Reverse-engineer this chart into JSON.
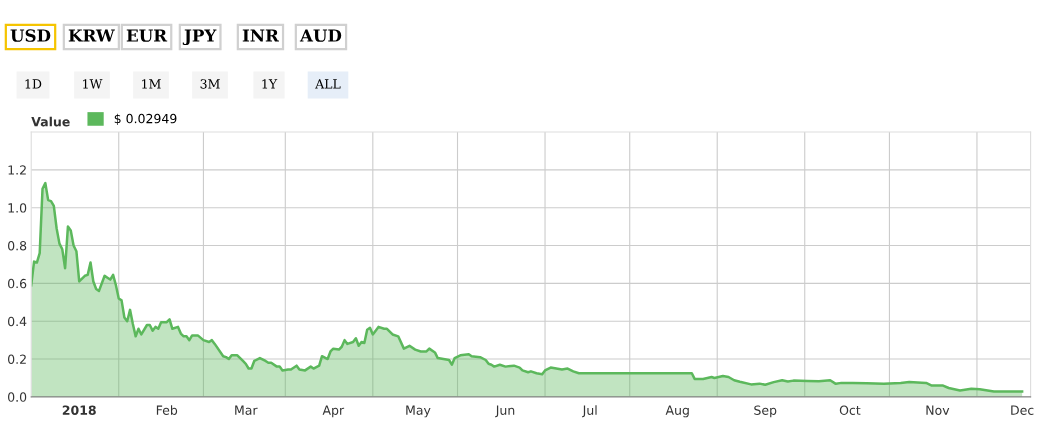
{
  "chart_data": {
    "type": "area",
    "legend_title": "Value",
    "legend": "top left",
    "grid": true,
    "annotations": [
      "USD",
      "KRW",
      "EUR",
      "JPY",
      "INR",
      "AUD",
      "1D",
      "1W",
      "1M",
      "3M",
      "1Y",
      "ALL"
    ],
    "xlim": [
      "2017-12-15",
      "2018-12-04"
    ],
    "xticks": [
      {
        "value": "2018-01-01",
        "label": "2018"
      },
      {
        "value": "2018-01-15",
        "label": null
      },
      {
        "value": "2018-02-01",
        "label": "Feb"
      },
      {
        "value": "2018-02-14",
        "label": null
      },
      {
        "value": "2018-03-01",
        "label": "Mar"
      },
      {
        "value": "2018-03-15",
        "label": null
      },
      {
        "value": "2018-04-01",
        "label": "Apr"
      },
      {
        "value": "2018-04-15",
        "label": null
      },
      {
        "value": "2018-05-01",
        "label": "May"
      },
      {
        "value": "2018-05-15",
        "label": null
      },
      {
        "value": "2018-06-01",
        "label": "Jun"
      },
      {
        "value": "2018-06-15",
        "label": null
      },
      {
        "value": "2018-07-01",
        "label": "Jul"
      },
      {
        "value": "2018-07-15",
        "label": null
      },
      {
        "value": "2018-08-01",
        "label": "Aug"
      },
      {
        "value": "2018-08-15",
        "label": null
      },
      {
        "value": "2018-09-01",
        "label": "Sep"
      },
      {
        "value": "2018-09-15",
        "label": null
      },
      {
        "value": "2018-10-01",
        "label": "Oct"
      },
      {
        "value": "2018-10-15",
        "label": null
      },
      {
        "value": "2018-11-01",
        "label": "Nov"
      },
      {
        "value": "2018-11-15",
        "label": null
      },
      {
        "value": "2018-12-01",
        "label": "Dec"
      }
    ],
    "ylim": [
      0,
      1.4
    ],
    "yticks": [
      {
        "value": 0,
        "label": "0.0"
      },
      {
        "value": 0.2,
        "label": "0.2"
      },
      {
        "value": 0.4,
        "label": "0.4"
      },
      {
        "value": 0.6,
        "label": "0.6"
      },
      {
        "value": 0.8,
        "label": "0.8"
      },
      {
        "value": 1.0,
        "label": "1.0"
      },
      {
        "value": 1.2,
        "label": "1.2"
      }
    ],
    "x": [
      "2017-12-15",
      "2017-12-16",
      "2017-12-17",
      "2017-12-18",
      "2017-12-19",
      "2017-12-20",
      "2017-12-21",
      "2017-12-22",
      "2017-12-23",
      "2017-12-24",
      "2017-12-25",
      "2017-12-26",
      "2017-12-27",
      "2017-12-28",
      "2017-12-29",
      "2017-12-30",
      "2017-12-31",
      "2018-01-01",
      "2018-01-03",
      "2018-01-04",
      "2018-01-05",
      "2018-01-06",
      "2018-01-07",
      "2018-01-08",
      "2018-01-10",
      "2018-01-11",
      "2018-01-12",
      "2018-01-13",
      "2018-01-14",
      "2018-01-15",
      "2018-01-16",
      "2018-01-17",
      "2018-01-18",
      "2018-01-19",
      "2018-01-20",
      "2018-01-21",
      "2018-01-22",
      "2018-01-23",
      "2018-01-25",
      "2018-01-26",
      "2018-01-27",
      "2018-01-28",
      "2018-01-29",
      "2018-01-30",
      "2018-02-01",
      "2018-02-02",
      "2018-02-03",
      "2018-02-05",
      "2018-02-06",
      "2018-02-07",
      "2018-02-08",
      "2018-02-09",
      "2018-02-10",
      "2018-02-12",
      "2018-02-14",
      "2018-02-16",
      "2018-02-17",
      "2018-02-18",
      "2018-02-21",
      "2018-02-22",
      "2018-02-23",
      "2018-02-24",
      "2018-02-26",
      "2018-02-28",
      "2018-03-01",
      "2018-03-02",
      "2018-03-03",
      "2018-03-04",
      "2018-03-06",
      "2018-03-08",
      "2018-03-09",
      "2018-03-10",
      "2018-03-12",
      "2018-03-13",
      "2018-03-14",
      "2018-03-16",
      "2018-03-17",
      "2018-03-19",
      "2018-03-20",
      "2018-03-22",
      "2018-03-24",
      "2018-03-25",
      "2018-03-27",
      "2018-03-28",
      "2018-03-30",
      "2018-03-31",
      "2018-04-01",
      "2018-04-03",
      "2018-04-04",
      "2018-04-05",
      "2018-04-06",
      "2018-04-08",
      "2018-04-09",
      "2018-04-10",
      "2018-04-11",
      "2018-04-12",
      "2018-04-13",
      "2018-04-14",
      "2018-04-15",
      "2018-04-17",
      "2018-04-19",
      "2018-04-20",
      "2018-04-22",
      "2018-04-24",
      "2018-04-26",
      "2018-04-28",
      "2018-04-30",
      "2018-05-02",
      "2018-05-04",
      "2018-05-05",
      "2018-05-07",
      "2018-05-08",
      "2018-05-10",
      "2018-05-12",
      "2018-05-13",
      "2018-05-14",
      "2018-05-16",
      "2018-05-19",
      "2018-05-20",
      "2018-05-23",
      "2018-05-25",
      "2018-05-26",
      "2018-05-27",
      "2018-05-28",
      "2018-05-30",
      "2018-06-01",
      "2018-06-04",
      "2018-06-06",
      "2018-06-07",
      "2018-06-09",
      "2018-06-10",
      "2018-06-12",
      "2018-06-14",
      "2018-06-15",
      "2018-06-17",
      "2018-06-19",
      "2018-06-21",
      "2018-06-23",
      "2018-06-25",
      "2018-06-27",
      "2018-08-06",
      "2018-08-07",
      "2018-08-10",
      "2018-08-13",
      "2018-08-14",
      "2018-08-17",
      "2018-08-19",
      "2018-08-21",
      "2018-08-23",
      "2018-08-27",
      "2018-08-30",
      "2018-09-01",
      "2018-09-04",
      "2018-09-07",
      "2018-09-09",
      "2018-09-11",
      "2018-09-16",
      "2018-09-20",
      "2018-09-24",
      "2018-09-26",
      "2018-09-28",
      "2018-10-02",
      "2018-10-07",
      "2018-10-13",
      "2018-10-19",
      "2018-10-22",
      "2018-10-28",
      "2018-10-30",
      "2018-11-03",
      "2018-11-05",
      "2018-11-09",
      "2018-11-13",
      "2018-11-16",
      "2018-11-21",
      "2018-11-25",
      "2018-12-01"
    ],
    "series": [
      {
        "name": "$ 0.02949",
        "color": "#5cb85c",
        "values": [
          0.59,
          0.715,
          0.71,
          0.76,
          1.1,
          1.13,
          1.04,
          1.035,
          1.01,
          0.89,
          0.81,
          0.78,
          0.68,
          0.9,
          0.88,
          0.8,
          0.77,
          0.61,
          0.64,
          0.645,
          0.71,
          0.61,
          0.57,
          0.56,
          0.64,
          0.63,
          0.62,
          0.645,
          0.59,
          0.52,
          0.51,
          0.42,
          0.4,
          0.46,
          0.385,
          0.32,
          0.36,
          0.33,
          0.38,
          0.38,
          0.35,
          0.37,
          0.36,
          0.395,
          0.395,
          0.41,
          0.36,
          0.37,
          0.335,
          0.32,
          0.32,
          0.3,
          0.325,
          0.325,
          0.3,
          0.29,
          0.3,
          0.28,
          0.215,
          0.21,
          0.2,
          0.22,
          0.22,
          0.19,
          0.175,
          0.15,
          0.15,
          0.19,
          0.205,
          0.19,
          0.18,
          0.18,
          0.16,
          0.16,
          0.14,
          0.145,
          0.145,
          0.165,
          0.145,
          0.14,
          0.16,
          0.15,
          0.165,
          0.215,
          0.2,
          0.24,
          0.255,
          0.25,
          0.265,
          0.3,
          0.28,
          0.29,
          0.31,
          0.27,
          0.29,
          0.285,
          0.355,
          0.365,
          0.33,
          0.37,
          0.36,
          0.36,
          0.33,
          0.32,
          0.255,
          0.27,
          0.25,
          0.24,
          0.24,
          0.255,
          0.235,
          0.205,
          0.2,
          0.195,
          0.17,
          0.205,
          0.22,
          0.225,
          0.215,
          0.21,
          0.195,
          0.175,
          0.17,
          0.16,
          0.17,
          0.16,
          0.165,
          0.155,
          0.14,
          0.13,
          0.135,
          0.125,
          0.12,
          0.14,
          0.155,
          0.15,
          0.145,
          0.15,
          0.135,
          0.125,
          0.125,
          0.095,
          0.095,
          0.105,
          0.1,
          0.11,
          0.105,
          0.088,
          0.08,
          0.066,
          0.07,
          0.064,
          0.078,
          0.088,
          0.081,
          0.086,
          0.084,
          0.083,
          0.088,
          0.069,
          0.074,
          0.074,
          0.072,
          0.069,
          0.074,
          0.079,
          0.074,
          0.06,
          0.06,
          0.047,
          0.034,
          0.043,
          0.04,
          0.028,
          0.029,
          0.029
        ]
      }
    ]
  }
}
